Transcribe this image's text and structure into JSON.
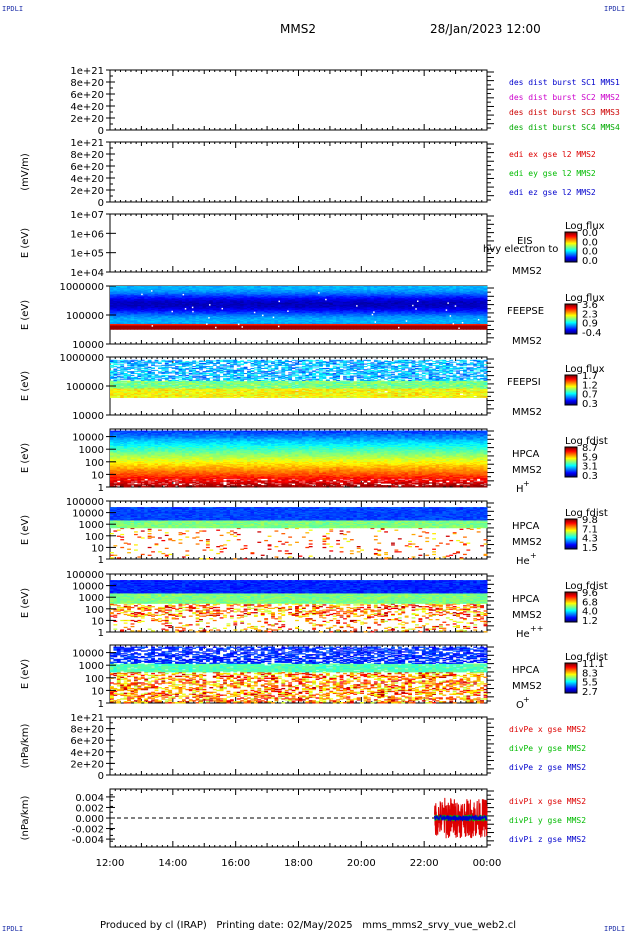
{
  "header": {
    "corner_tag": "IPDLI",
    "spacecraft": "MMS2",
    "datetime": "28/Jan/2023 12:00"
  },
  "footer": {
    "produced_by": "Produced by cl (IRAP)",
    "printing_date": "Printing date: 02/May/2025",
    "script_name": "mms_mms2_srvy_vue_web2.cl"
  },
  "colors": {
    "mms1": "#0000cc",
    "mms2": "#cc00cc",
    "mms3": "#cc0000",
    "mms4": "#00aa00",
    "x_component": "#dd0000",
    "y_component": "#00bb00",
    "z_component": "#0000cc",
    "dashed_zero": "#000000"
  },
  "chart_data": [
    {
      "type": "line",
      "panel": "des-dist-burst",
      "ylabel": "",
      "y_ticks": [
        "0",
        "2e+20",
        "4e+20",
        "6e+20",
        "8e+20",
        "1e+21"
      ],
      "ylim": [
        0,
        1e+21
      ],
      "series": [
        {
          "name": "des_dist_burst_SC1 MMS1",
          "color_key": "mms1",
          "values": []
        },
        {
          "name": "des_dist_burst_SC2 MMS2",
          "color_key": "mms2",
          "values": []
        },
        {
          "name": "des_dist_burst_SC3 MMS3",
          "color_key": "mms3",
          "values": []
        },
        {
          "name": "des_dist_burst_SC4 MMS4",
          "color_key": "mms4",
          "values": []
        }
      ]
    },
    {
      "type": "line",
      "panel": "edi-e",
      "ylabel": "(mV/m)",
      "y_ticks": [
        "0",
        "2e+20",
        "4e+20",
        "6e+20",
        "8e+20",
        "1e+21"
      ],
      "ylim": [
        0,
        1e+21
      ],
      "series": [
        {
          "name": "edi_ex_gse_l2 MMS2",
          "color_key": "x_component",
          "values": []
        },
        {
          "name": "edi_ey_gse_l2 MMS2",
          "color_key": "y_component",
          "values": []
        },
        {
          "name": "edi_ez_gse_l2 MMS2",
          "color_key": "z_component",
          "values": []
        }
      ]
    },
    {
      "type": "heatmap",
      "panel": "eis",
      "ylabel": "E (eV)",
      "y_scale": "log",
      "y_ticks": [
        "1e+04",
        "1e+05",
        "1e+06",
        "1e+07"
      ],
      "ylim": [
        10000,
        10000000
      ],
      "labels": [
        "EIS",
        "hvy electron to",
        "MMS2"
      ],
      "colorbar": {
        "title": "Log flux",
        "ticks": [
          "0.0",
          "0.0",
          "0.0",
          "0.0"
        ]
      },
      "description": "empty spectrogram"
    },
    {
      "type": "heatmap",
      "panel": "feepse",
      "ylabel": "E (eV)",
      "y_scale": "log",
      "y_ticks": [
        "10000",
        "100000",
        "1000000"
      ],
      "ylim": [
        10000,
        1000000
      ],
      "labels": [
        "FEEPSE",
        "MMS2"
      ],
      "colorbar": {
        "title": "Log flux",
        "ticks": [
          "3.6",
          "2.3",
          "0.9",
          "-0.4"
        ]
      },
      "description": "blue spectrogram filling ~32000-1000000 eV with red band at the lowest energies"
    },
    {
      "type": "heatmap",
      "panel": "feepsi",
      "ylabel": "E (eV)",
      "y_scale": "log",
      "y_ticks": [
        "10000",
        "100000",
        "1000000"
      ],
      "ylim": [
        10000,
        1000000
      ],
      "labels": [
        "FEEPSI",
        "MMS2"
      ],
      "colorbar": {
        "title": "Log flux",
        "ticks": [
          "1.7",
          "1.2",
          "0.7",
          "0.3"
        ]
      },
      "description": "speckled blue/cyan above ~200000 eV, green/yellow band ~50000-150000 eV"
    },
    {
      "type": "heatmap",
      "panel": "hpca-h",
      "ylabel": "E (eV)",
      "y_scale": "log",
      "y_ticks": [
        "1",
        "10",
        "100",
        "1000",
        "10000"
      ],
      "ylim": [
        1,
        40000
      ],
      "labels": [
        "HPCA",
        "MMS2",
        "H",
        "+"
      ],
      "colorbar": {
        "title": "Log fdist",
        "ticks": [
          "8.7",
          "5.9",
          "3.1",
          "0.3"
        ]
      },
      "description": "blue at top, green/yellow middle, orange/red at low energies"
    },
    {
      "type": "heatmap",
      "panel": "hpca-he",
      "ylabel": "E (eV)",
      "y_scale": "log",
      "y_ticks": [
        "1",
        "10",
        "100",
        "1000",
        "10000",
        "100000"
      ],
      "ylim": [
        1,
        100000
      ],
      "labels": [
        "HPCA",
        "MMS2",
        "He",
        "+"
      ],
      "colorbar": {
        "title": "Log fdist",
        "ticks": [
          "9.8",
          "7.1",
          "4.3",
          "1.5"
        ]
      },
      "description": "blue at top, green band, sparse yellow/red specks below"
    },
    {
      "type": "heatmap",
      "panel": "hpca-he2",
      "ylabel": "E (eV)",
      "y_scale": "log",
      "y_ticks": [
        "1",
        "10",
        "100",
        "1000",
        "10000",
        "100000"
      ],
      "ylim": [
        1,
        100000
      ],
      "labels": [
        "HPCA",
        "MMS2",
        "He",
        "++"
      ],
      "colorbar": {
        "title": "Log fdist",
        "ticks": [
          "9.6",
          "6.8",
          "4.0",
          "1.2"
        ]
      },
      "description": "blue at top, green band, speckled green/yellow/red below"
    },
    {
      "type": "heatmap",
      "panel": "hpca-o",
      "ylabel": "E (eV)",
      "y_scale": "log",
      "y_ticks": [
        "1",
        "10",
        "100",
        "1000",
        "10000"
      ],
      "ylim": [
        1,
        40000
      ],
      "labels": [
        "HPCA",
        "MMS2",
        "O",
        "+"
      ],
      "colorbar": {
        "title": "Log fdist",
        "ticks": [
          "11.1",
          "8.3",
          "5.5",
          "2.7"
        ]
      },
      "description": "speckled blue at top, green/yellow/orange/red speckles below"
    },
    {
      "type": "line",
      "panel": "divpe",
      "ylabel": "(nPa/km)",
      "y_ticks": [
        "0",
        "2e+20",
        "4e+20",
        "6e+20",
        "8e+20",
        "1e+21"
      ],
      "ylim": [
        0,
        1e+21
      ],
      "series": [
        {
          "name": "divPe_x_gse MMS2",
          "color_key": "x_component",
          "values": []
        },
        {
          "name": "divPe_y_gse MMS2",
          "color_key": "y_component",
          "values": []
        },
        {
          "name": "divPe_z_gse MMS2",
          "color_key": "z_component",
          "values": []
        }
      ]
    },
    {
      "type": "line",
      "panel": "divpi",
      "ylabel": "(nPa/km)",
      "y_ticks": [
        "-0.004",
        "-0.002",
        "0.000",
        "0.002",
        "0.004"
      ],
      "ylim": [
        -0.0055,
        0.0055
      ],
      "x": [
        "22:20",
        "22:40",
        "23:00",
        "23:20",
        "23:40",
        "24:00"
      ],
      "series": [
        {
          "name": "divPi_x_gse MMS2",
          "color_key": "x_component",
          "amplitude": [
            0.0035,
            0.004,
            0.0038,
            0.0036,
            0.0039,
            0.0037
          ]
        },
        {
          "name": "divPi_y_gse MMS2",
          "color_key": "y_component",
          "amplitude": [
            0.0006,
            0.0006,
            0.0006,
            0.0006,
            0.0006,
            0.0006
          ]
        },
        {
          "name": "divPi_z_gse MMS2",
          "color_key": "z_component",
          "amplitude": [
            0.0005,
            0.0005,
            0.0005,
            0.0005,
            0.0005,
            0.0005
          ]
        }
      ]
    }
  ],
  "x_axis": {
    "ticks": [
      "12:00",
      "14:00",
      "16:00",
      "18:00",
      "20:00",
      "22:00",
      "00:00"
    ],
    "range_hours": [
      12,
      24
    ]
  }
}
